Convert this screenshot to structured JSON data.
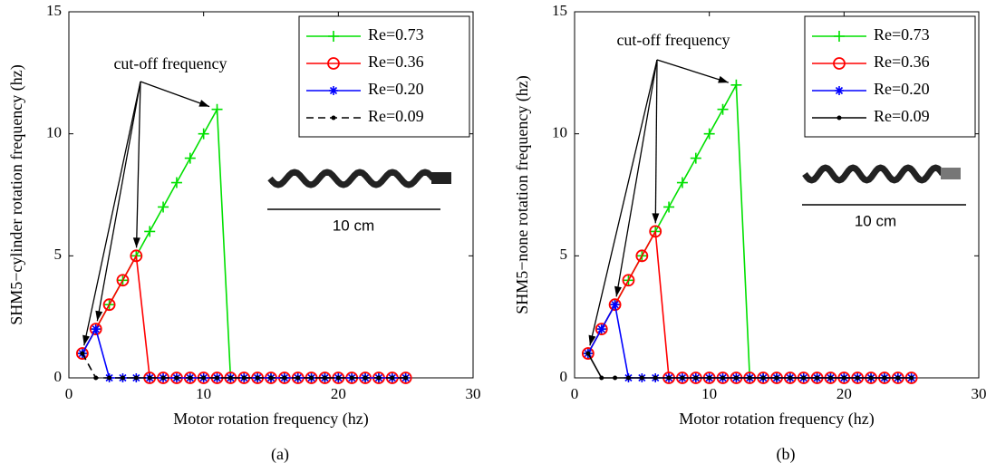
{
  "chart_data": [
    {
      "type": "line",
      "caption": "(a)",
      "xlabel": "Motor rotation frequency (hz)",
      "ylabel": "SHM5−cylinder rotation frequency (hz)",
      "annotation": "cut-off frequency",
      "inset_label": "10 cm",
      "xlim": [
        0,
        30
      ],
      "ylim": [
        0,
        15
      ],
      "xticks": [
        0,
        10,
        20,
        30
      ],
      "yticks": [
        0,
        5,
        10,
        15
      ],
      "legend": "upper right",
      "x": [
        1,
        2,
        3,
        4,
        5,
        6,
        7,
        8,
        9,
        10,
        11,
        12,
        13,
        14,
        15,
        16,
        17,
        18,
        19,
        20,
        21,
        22,
        23,
        24,
        25
      ],
      "series": [
        {
          "name": "Re=0.73",
          "color": "#00e000",
          "marker": "+",
          "line_style": "solid",
          "values": [
            1,
            2,
            3,
            4,
            5,
            6,
            7,
            8,
            9,
            10,
            11,
            0,
            0,
            0,
            0,
            0,
            0,
            0,
            0,
            0,
            0,
            0,
            0,
            0,
            0
          ]
        },
        {
          "name": "Re=0.36",
          "color": "#ff0000",
          "marker": "o",
          "line_style": "solid",
          "values": [
            1,
            2,
            3,
            4,
            5,
            0,
            0,
            0,
            0,
            0,
            0,
            0,
            0,
            0,
            0,
            0,
            0,
            0,
            0,
            0,
            0,
            0,
            0,
            0,
            0
          ]
        },
        {
          "name": "Re=0.20",
          "color": "#0000ff",
          "marker": "*",
          "line_style": "solid",
          "values": [
            1,
            2,
            0,
            0,
            0,
            0,
            0,
            0,
            0,
            0,
            0,
            0,
            0,
            0,
            0,
            0,
            0,
            0,
            0,
            0,
            0,
            0,
            0,
            0,
            0
          ]
        },
        {
          "name": "Re=0.09",
          "color": "#000000",
          "marker": ".",
          "line_style": "dashed",
          "values": [
            1,
            0,
            0,
            0,
            0,
            0,
            0,
            0,
            0,
            0,
            0,
            0,
            0,
            0,
            0,
            0,
            0,
            0,
            0,
            0,
            0,
            0,
            0,
            0,
            0
          ]
        }
      ]
    },
    {
      "type": "line",
      "caption": "(b)",
      "xlabel": "Motor rotation frequency (hz)",
      "ylabel": "SHM5−none rotation frequency (hz)",
      "annotation": "cut-off frequency",
      "inset_label": "10 cm",
      "xlim": [
        0,
        30
      ],
      "ylim": [
        0,
        15
      ],
      "xticks": [
        0,
        10,
        20,
        30
      ],
      "yticks": [
        0,
        5,
        10,
        15
      ],
      "legend": "upper right",
      "x": [
        1,
        2,
        3,
        4,
        5,
        6,
        7,
        8,
        9,
        10,
        11,
        12,
        13,
        14,
        15,
        16,
        17,
        18,
        19,
        20,
        21,
        22,
        23,
        24,
        25
      ],
      "series": [
        {
          "name": "Re=0.73",
          "color": "#00e000",
          "marker": "+",
          "line_style": "solid",
          "values": [
            1,
            2,
            3,
            4,
            5,
            6,
            7,
            8,
            9,
            10,
            11,
            12,
            0,
            0,
            0,
            0,
            0,
            0,
            0,
            0,
            0,
            0,
            0,
            0,
            0
          ]
        },
        {
          "name": "Re=0.36",
          "color": "#ff0000",
          "marker": "o",
          "line_style": "solid",
          "values": [
            1,
            2,
            3,
            4,
            5,
            6,
            0,
            0,
            0,
            0,
            0,
            0,
            0,
            0,
            0,
            0,
            0,
            0,
            0,
            0,
            0,
            0,
            0,
            0,
            0
          ]
        },
        {
          "name": "Re=0.20",
          "color": "#0000ff",
          "marker": "*",
          "line_style": "solid",
          "values": [
            1,
            2,
            3,
            0,
            0,
            0,
            0,
            0,
            0,
            0,
            0,
            0,
            0,
            0,
            0,
            0,
            0,
            0,
            0,
            0,
            0,
            0,
            0,
            0,
            0
          ]
        },
        {
          "name": "Re=0.09",
          "color": "#000000",
          "marker": ".",
          "line_style": "solid",
          "values": [
            1,
            0,
            0,
            0,
            0,
            0,
            0,
            0,
            0,
            0,
            0,
            0,
            0,
            0,
            0,
            0,
            0,
            0,
            0,
            0,
            0,
            0,
            0,
            0,
            0
          ]
        }
      ]
    }
  ]
}
